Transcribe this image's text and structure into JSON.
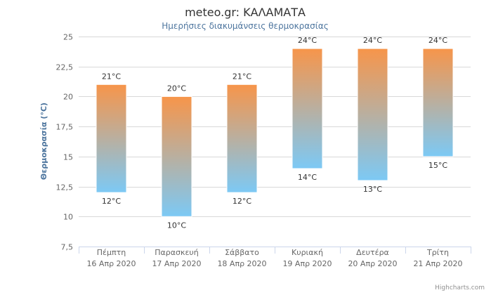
{
  "chart_data": {
    "type": "columnrange",
    "title": "meteo.gr: ΚΑΛΑΜΑΤΑ",
    "subtitle": "Ημερήσιες διακυμάνσεις θερμοκρασίας",
    "ylabel": "Θερμοκρασία (°C)",
    "ylim": [
      7.5,
      25
    ],
    "yticks": [
      "7,5",
      "10",
      "12,5",
      "15",
      "17,5",
      "20",
      "22,5",
      "25"
    ],
    "grid": true,
    "categories": [
      [
        "Πέμπτη",
        "16 Απρ 2020"
      ],
      [
        "Παρασκευή",
        "17 Απρ 2020"
      ],
      [
        "Σάββατο",
        "18 Απρ 2020"
      ],
      [
        "Κυριακή",
        "19 Απρ 2020"
      ],
      [
        "Δευτέρα",
        "20 Απρ 2020"
      ],
      [
        "Τρίτη",
        "21 Απρ 2020"
      ]
    ],
    "low": [
      12,
      10,
      12,
      14,
      13,
      15
    ],
    "high": [
      21,
      20,
      21,
      24,
      24,
      24
    ],
    "low_labels": [
      "12°C",
      "10°C",
      "12°C",
      "14°C",
      "13°C",
      "15°C"
    ],
    "high_labels": [
      "21°C",
      "20°C",
      "21°C",
      "24°C",
      "24°C",
      "24°C"
    ],
    "colors": {
      "top": "#f7954a",
      "bottom": "#7cc9f5",
      "grid": "#d8d8d8",
      "axis": "#ccd6eb"
    }
  },
  "credits": "Highcharts.com"
}
